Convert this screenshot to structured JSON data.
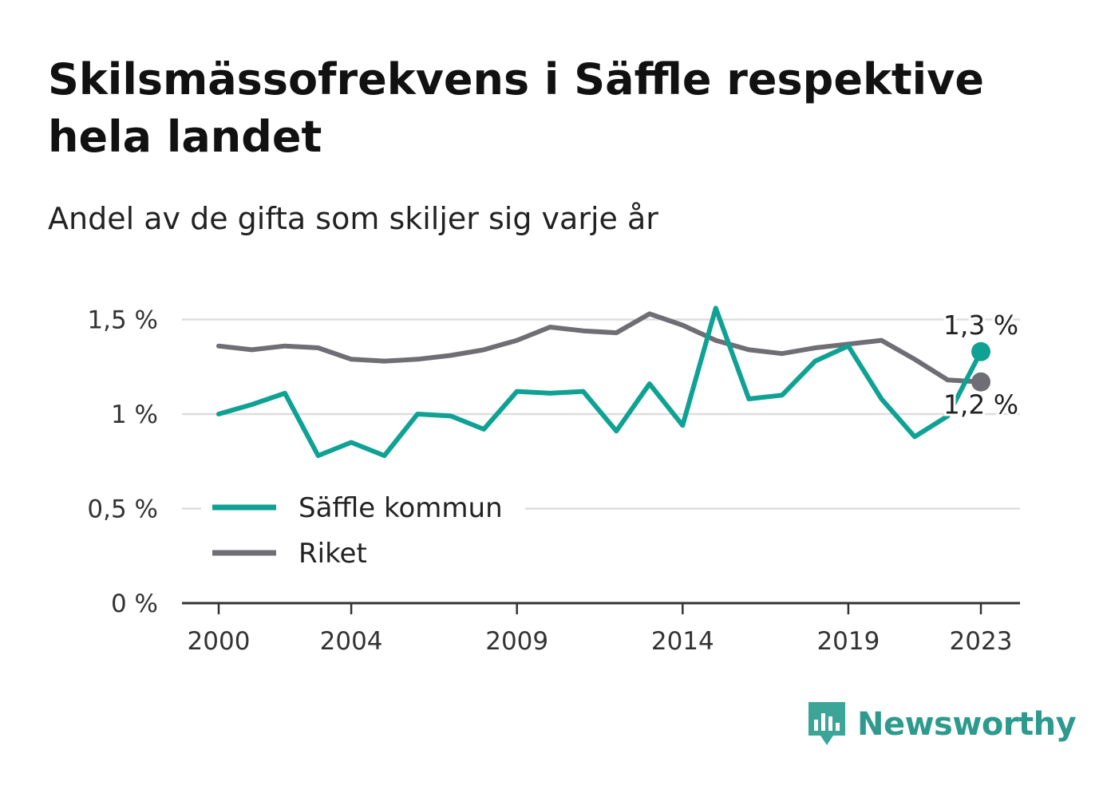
{
  "title": "Skilsmässofrekvens i Säffle respektive hela landet",
  "subtitle": "Andel av de gifta som skiljer sig varje år",
  "brand": "Newsworthy",
  "chart_data": {
    "type": "line",
    "x": [
      2000,
      2001,
      2002,
      2003,
      2004,
      2005,
      2006,
      2007,
      2008,
      2009,
      2010,
      2011,
      2012,
      2013,
      2014,
      2015,
      2016,
      2017,
      2018,
      2019,
      2020,
      2021,
      2022,
      2023
    ],
    "x_ticks": [
      2000,
      2004,
      2009,
      2014,
      2019,
      2023
    ],
    "x_tick_labels": [
      "2000",
      "2004",
      "2009",
      "2014",
      "2019",
      "2023"
    ],
    "ylim": [
      0,
      1.6
    ],
    "y_ticks": [
      0,
      0.5,
      1,
      1.5
    ],
    "y_tick_labels": [
      "0 %",
      "0,5 %",
      "1 %",
      "1,5 %"
    ],
    "grid": true,
    "legend_position": "bottom-left",
    "series": [
      {
        "name": "Säffle kommun",
        "color": "#0fa294",
        "values": [
          1.0,
          1.05,
          1.11,
          0.78,
          0.85,
          0.78,
          1.0,
          0.99,
          0.92,
          1.12,
          1.11,
          1.12,
          0.91,
          1.16,
          0.94,
          1.56,
          1.08,
          1.1,
          1.28,
          1.36,
          1.08,
          0.88,
          0.99,
          1.33
        ],
        "end_label": "1,3 %"
      },
      {
        "name": "Riket",
        "color": "#6e6e74",
        "values": [
          1.36,
          1.34,
          1.36,
          1.35,
          1.29,
          1.28,
          1.29,
          1.31,
          1.34,
          1.39,
          1.46,
          1.44,
          1.43,
          1.53,
          1.47,
          1.39,
          1.34,
          1.32,
          1.35,
          1.37,
          1.39,
          1.29,
          1.18,
          1.17
        ],
        "end_label": "1,2 %"
      }
    ]
  }
}
